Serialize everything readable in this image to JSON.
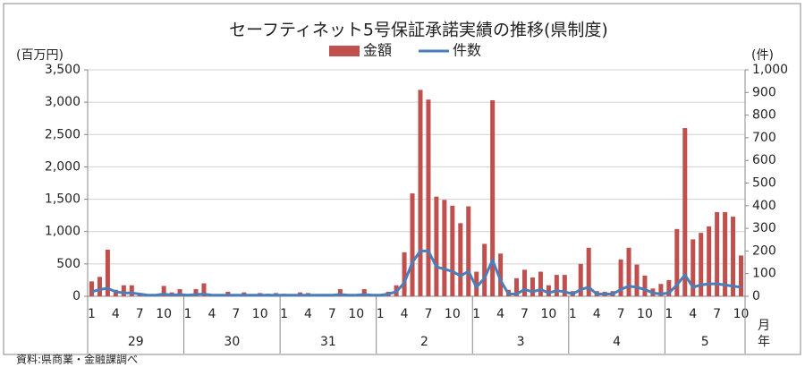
{
  "chart_data": {
    "type": "bar-line",
    "title": "セーフティネット5号保証承諾実績の推移(県制度)",
    "y_label": "(百万円)",
    "y2_label": "(件)",
    "x_unit_month": "月",
    "x_unit_year": "年",
    "source": "資料:県商業・金融課調べ",
    "categories": [
      "1",
      null,
      null,
      "4",
      null,
      null,
      "7",
      null,
      null,
      "10",
      null,
      null,
      "1",
      null,
      null,
      "4",
      null,
      null,
      "7",
      null,
      null,
      "10",
      null,
      null,
      "1",
      null,
      null,
      "4",
      null,
      null,
      "7",
      null,
      null,
      "10",
      null,
      null,
      "1",
      null,
      null,
      "4",
      null,
      null,
      "7",
      null,
      null,
      "10",
      null,
      null,
      "1",
      null,
      null,
      "4",
      null,
      null,
      "7",
      null,
      null,
      "10",
      null,
      null,
      "1",
      null,
      null,
      "4",
      null,
      null,
      "7",
      null,
      null,
      "10",
      null,
      null,
      "1",
      null,
      null,
      "4",
      null,
      null,
      "7",
      null,
      null,
      "10"
    ],
    "year_labels": [
      "29",
      "30",
      "31",
      "2",
      "3",
      "4",
      "5"
    ],
    "series": [
      {
        "name": "金額",
        "color": "#c0504d",
        "kind": "bar",
        "values": [
          230,
          300,
          720,
          100,
          170,
          170,
          30,
          20,
          20,
          160,
          60,
          110,
          20,
          110,
          200,
          20,
          30,
          70,
          30,
          60,
          30,
          50,
          40,
          50,
          40,
          20,
          60,
          50,
          20,
          20,
          20,
          110,
          20,
          20,
          110,
          20,
          30,
          70,
          170,
          680,
          1590,
          3190,
          3040,
          1540,
          1490,
          1400,
          1130,
          1390,
          380,
          810,
          3030,
          660,
          100,
          280,
          410,
          290,
          380,
          170,
          330,
          330,
          80,
          500,
          750,
          80,
          70,
          80,
          570,
          750,
          490,
          320,
          120,
          190,
          250,
          1040,
          2600,
          880,
          980,
          1080,
          1300,
          1300,
          1230,
          630
        ]
      },
      {
        "name": "件数",
        "color": "#4a7ebb",
        "kind": "line",
        "axis": "y2",
        "values": [
          20,
          30,
          35,
          20,
          15,
          15,
          10,
          5,
          5,
          10,
          5,
          8,
          5,
          8,
          10,
          5,
          5,
          5,
          5,
          5,
          5,
          5,
          5,
          5,
          5,
          5,
          5,
          5,
          5,
          5,
          5,
          8,
          5,
          5,
          8,
          5,
          5,
          10,
          20,
          60,
          150,
          200,
          200,
          130,
          120,
          110,
          90,
          110,
          40,
          80,
          160,
          70,
          10,
          10,
          30,
          20,
          30,
          15,
          25,
          20,
          10,
          30,
          40,
          10,
          10,
          10,
          30,
          45,
          40,
          30,
          15,
          10,
          15,
          50,
          95,
          40,
          50,
          55,
          55,
          50,
          45,
          40
        ]
      }
    ],
    "ylim": [
      0,
      3500
    ],
    "yticks": [
      0,
      500,
      {
        "value": 1000,
        "label": "1,000"
      },
      {
        "value": 1500,
        "label": "1,500"
      },
      {
        "value": 2000,
        "label": "2,000"
      },
      {
        "value": 2500,
        "label": "2,500"
      },
      {
        "value": 3000,
        "label": "3,000"
      },
      {
        "value": 3500,
        "label": "3,500"
      }
    ],
    "y2lim": [
      0,
      1000
    ],
    "y2ticks": [
      0,
      100,
      200,
      300,
      400,
      500,
      600,
      700,
      800,
      900,
      {
        "value": 1000,
        "label": "1,000"
      }
    ],
    "grid": true
  }
}
